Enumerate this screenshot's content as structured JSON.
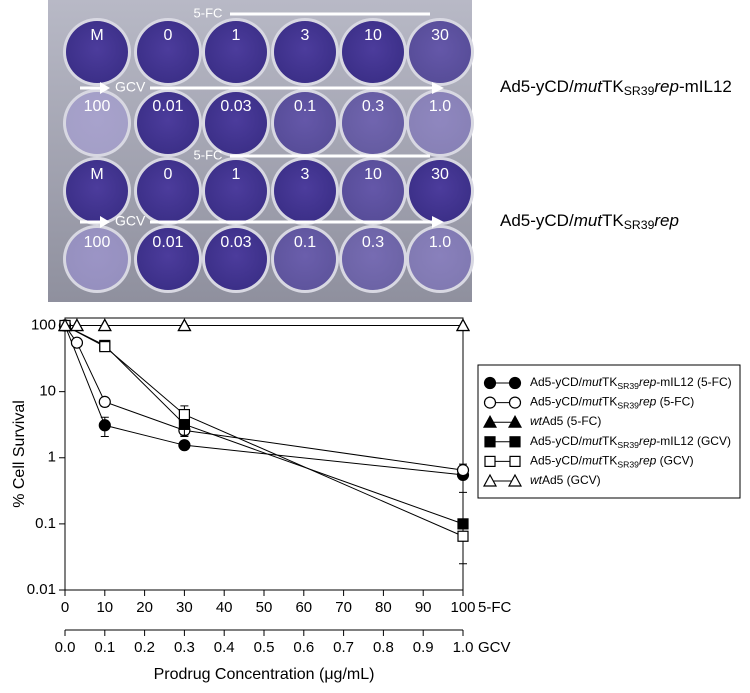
{
  "plate": {
    "rows": [
      [
        "M",
        "0",
        "1",
        "3",
        "10",
        "30"
      ],
      [
        "100",
        "0.01",
        "0.03",
        "0.1",
        "0.3",
        "1.0"
      ],
      [
        "M",
        "0",
        "1",
        "3",
        "10",
        "30"
      ],
      [
        "100",
        "0.01",
        "0.03",
        "0.1",
        "0.3",
        "1.0"
      ]
    ],
    "arrows": [
      "5-FC",
      "GCV",
      "5-FC",
      "GCV"
    ],
    "constructs": [
      [
        {
          "text": "Ad5-yCD/",
          "style": "normal"
        },
        {
          "text": "mut",
          "style": "italic"
        },
        {
          "text": "TK",
          "style": "normal"
        },
        {
          "text": "SR39",
          "style": "sub"
        },
        {
          "text": "rep",
          "style": "italic"
        },
        {
          "text": "-mIL12",
          "style": "normal"
        }
      ],
      [
        {
          "text": "Ad5-yCD/",
          "style": "normal"
        },
        {
          "text": "mut",
          "style": "italic"
        },
        {
          "text": "TK",
          "style": "normal"
        },
        {
          "text": "SR39",
          "style": "sub"
        },
        {
          "text": "rep",
          "style": "italic"
        }
      ]
    ]
  },
  "chart_data": {
    "type": "line",
    "log_y": true,
    "y_label": "% Cell Survival",
    "x_label": "Prodrug Concentration (μg/mL)",
    "x_name": "5-FC",
    "x2_name": "GCV",
    "xlim": [
      0,
      100
    ],
    "xticks": [
      0,
      10,
      20,
      30,
      40,
      50,
      60,
      70,
      80,
      90,
      100
    ],
    "x2lim": [
      0,
      1
    ],
    "x2ticks": [
      {
        "value": 0,
        "label": "0.0"
      },
      0.1,
      0.2,
      0.3,
      0.4,
      0.5,
      0.6,
      0.7,
      0.8,
      0.9,
      {
        "value": 1,
        "label": "1.0"
      }
    ],
    "ylim": [
      0.01,
      130
    ],
    "yticks": [
      0.01,
      0.1,
      1,
      10,
      100
    ],
    "series": [
      {
        "name": [
          {
            "text": "Ad5-yCD/",
            "style": "normal"
          },
          {
            "text": "mut",
            "style": "italic"
          },
          {
            "text": "TK",
            "style": "normal"
          },
          {
            "text": "SR39",
            "style": "sub"
          },
          {
            "text": "rep",
            "style": "italic"
          },
          {
            "text": "-mIL12 (5-FC)",
            "style": "normal"
          }
        ],
        "marker": "circle",
        "filled": true,
        "color": "#000000",
        "axis": "x",
        "x": [
          0,
          10,
          30,
          100
        ],
        "values": [
          100,
          3.1,
          1.55,
          0.55
        ],
        "errors": [
          null,
          1.0,
          0.2,
          0.25
        ]
      },
      {
        "name": [
          {
            "text": "Ad5-yCD/",
            "style": "normal"
          },
          {
            "text": "mut",
            "style": "italic"
          },
          {
            "text": "TK",
            "style": "normal"
          },
          {
            "text": "SR39",
            "style": "sub"
          },
          {
            "text": "rep",
            "style": "italic"
          },
          {
            "text": " (5-FC)",
            "style": "normal"
          }
        ],
        "marker": "circle",
        "filled": false,
        "color": "#000000",
        "axis": "x",
        "x": [
          0,
          3,
          10,
          30,
          100
        ],
        "values": [
          100,
          55,
          7,
          2.6,
          0.65
        ],
        "errors": [
          null,
          null,
          1,
          0.5,
          0.1
        ]
      },
      {
        "name": [
          {
            "text": "wt",
            "style": "italic"
          },
          {
            "text": "Ad5 (5-FC)",
            "style": "normal"
          }
        ],
        "marker": "triangle",
        "filled": true,
        "color": "#000000",
        "axis": "x",
        "x": [
          0,
          3,
          10,
          30,
          100
        ],
        "values": [
          100,
          100,
          100,
          100,
          100
        ],
        "errors": [
          null,
          null,
          null,
          null,
          null
        ]
      },
      {
        "name": [
          {
            "text": "Ad5-yCD/",
            "style": "normal"
          },
          {
            "text": "mut",
            "style": "italic"
          },
          {
            "text": "TK",
            "style": "normal"
          },
          {
            "text": "SR39",
            "style": "sub"
          },
          {
            "text": "rep",
            "style": "italic"
          },
          {
            "text": "-mIL12 (GCV)",
            "style": "normal"
          }
        ],
        "marker": "square",
        "filled": true,
        "color": "#000000",
        "axis": "x2",
        "x": [
          0,
          0.1,
          0.3,
          1.0
        ],
        "values": [
          100,
          50,
          3.2,
          0.1
        ],
        "errors": [
          null,
          null,
          1,
          null
        ]
      },
      {
        "name": [
          {
            "text": "Ad5-yCD/",
            "style": "normal"
          },
          {
            "text": "mut",
            "style": "italic"
          },
          {
            "text": "TK",
            "style": "normal"
          },
          {
            "text": "SR39",
            "style": "sub"
          },
          {
            "text": "rep",
            "style": "italic"
          },
          {
            "text": " (GCV)",
            "style": "normal"
          }
        ],
        "marker": "square",
        "filled": false,
        "color": "#000000",
        "axis": "x2",
        "x": [
          0,
          0.1,
          0.3,
          1.0
        ],
        "values": [
          100,
          48,
          4.5,
          0.065
        ],
        "errors": [
          null,
          null,
          1.6,
          0.04
        ]
      },
      {
        "name": [
          {
            "text": "wt",
            "style": "italic"
          },
          {
            "text": "Ad5 (GCV)",
            "style": "normal"
          }
        ],
        "marker": "triangle",
        "filled": false,
        "color": "#000000",
        "axis": "x2",
        "x": [
          0,
          0.03,
          0.1,
          0.3,
          1.0
        ],
        "values": [
          100,
          100,
          100,
          100,
          100
        ],
        "errors": [
          null,
          null,
          null,
          null,
          null
        ]
      }
    ]
  }
}
